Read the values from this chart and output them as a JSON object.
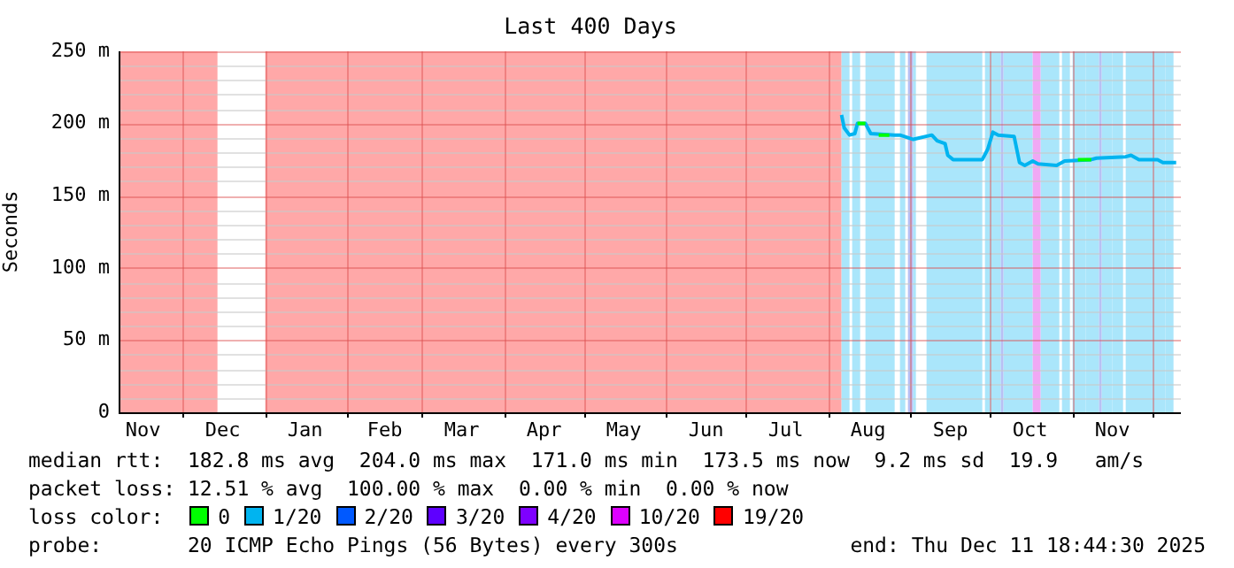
{
  "chart_data": {
    "type": "line",
    "title": "Last 400 Days",
    "ylabel": "Seconds",
    "xlim": [
      "2024-11-06T18:44",
      "2025-12-11T18:44"
    ],
    "xticks": [
      {
        "value": "2024-11-16",
        "label": "Nov"
      },
      {
        "value": "2024-12-01",
        "label": null
      },
      {
        "value": "2024-12-16",
        "label": "Dec"
      },
      {
        "value": "2025-01-01",
        "label": null
      },
      {
        "value": "2025-01-16",
        "label": "Jan"
      },
      {
        "value": "2025-02-01",
        "label": null
      },
      {
        "value": "2025-02-15",
        "label": "Feb"
      },
      {
        "value": "2025-03-01",
        "label": null
      },
      {
        "value": "2025-03-16",
        "label": "Mar"
      },
      {
        "value": "2025-04-01",
        "label": null
      },
      {
        "value": "2025-04-16",
        "label": "Apr"
      },
      {
        "value": "2025-05-01",
        "label": null
      },
      {
        "value": "2025-05-16",
        "label": "May"
      },
      {
        "value": "2025-06-01",
        "label": null
      },
      {
        "value": "2025-06-16",
        "label": "Jun"
      },
      {
        "value": "2025-07-01",
        "label": null
      },
      {
        "value": "2025-07-16",
        "label": "Jul"
      },
      {
        "value": "2025-08-01",
        "label": null
      },
      {
        "value": "2025-08-16",
        "label": "Aug"
      },
      {
        "value": "2025-09-01",
        "label": null
      },
      {
        "value": "2025-09-16",
        "label": "Sep"
      },
      {
        "value": "2025-10-01",
        "label": null
      },
      {
        "value": "2025-10-16",
        "label": "Oct"
      },
      {
        "value": "2025-11-01",
        "label": null
      },
      {
        "value": "2025-11-16",
        "label": "Nov"
      },
      {
        "value": "2025-12-01",
        "label": null
      }
    ],
    "ylim": [
      0,
      250
    ],
    "yticks": [
      0,
      {
        "value": 10,
        "label": null
      },
      {
        "value": 20,
        "label": null
      },
      {
        "value": 30,
        "label": null
      },
      {
        "value": 40,
        "label": null
      },
      {
        "value": 50,
        "label": "50 m"
      },
      {
        "value": 60,
        "label": null
      },
      {
        "value": 70,
        "label": null
      },
      {
        "value": 80,
        "label": null
      },
      {
        "value": 90,
        "label": null
      },
      {
        "value": 100,
        "label": "100 m"
      },
      {
        "value": 110,
        "label": null
      },
      {
        "value": 120,
        "label": null
      },
      {
        "value": 130,
        "label": null
      },
      {
        "value": 140,
        "label": null
      },
      {
        "value": 150,
        "label": "150 m"
      },
      {
        "value": 160,
        "label": null
      },
      {
        "value": 170,
        "label": null
      },
      {
        "value": 180,
        "label": null
      },
      {
        "value": 190,
        "label": null
      },
      {
        "value": 200,
        "label": "200 m"
      },
      {
        "value": 210,
        "label": null
      },
      {
        "value": 220,
        "label": null
      },
      {
        "value": 230,
        "label": null
      },
      {
        "value": 240,
        "label": null
      },
      {
        "value": 250,
        "label": "250 m"
      }
    ],
    "grid": true,
    "legend": "bottom",
    "legend_title": "loss color:",
    "marker": "none",
    "line_style": "solid",
    "bands": [
      {
        "axis": "x",
        "from": "2024-11-06T18:44",
        "to": "2024-12-14",
        "color": "#ffa8a8"
      },
      {
        "axis": "x",
        "from": "2025-01-01",
        "to": "2025-08-06",
        "color": "#ffa8a8"
      },
      {
        "axis": "x",
        "from": "2025-08-06",
        "to": "2025-08-09",
        "color": "#aae6fb"
      },
      {
        "axis": "x",
        "from": "2025-08-10",
        "to": "2025-08-13",
        "color": "#aae6fb"
      },
      {
        "axis": "x",
        "from": "2025-08-15",
        "to": "2025-08-26",
        "color": "#aae6fb"
      },
      {
        "axis": "x",
        "from": "2025-08-28",
        "to": "2025-08-30",
        "color": "#aae6fb"
      },
      {
        "axis": "x",
        "from": "2025-08-31",
        "to": "2025-09-02",
        "color": "#b8c0f4"
      },
      {
        "axis": "x",
        "from": "2025-09-02",
        "to": "2025-09-03",
        "color": "#aae6fb"
      },
      {
        "axis": "x",
        "from": "2025-09-07",
        "to": "2025-09-28",
        "color": "#aae6fb"
      },
      {
        "axis": "x",
        "from": "2025-09-29",
        "to": "2025-10-01",
        "color": "#aae6fb"
      },
      {
        "axis": "x",
        "from": "2025-10-01",
        "to": "2025-10-05",
        "color": "#aae6fb"
      },
      {
        "axis": "x",
        "from": "2025-10-05",
        "to": "2025-10-06",
        "color": "#b8c0f4"
      },
      {
        "axis": "x",
        "from": "2025-10-06",
        "to": "2025-10-17",
        "color": "#aae6fb"
      },
      {
        "axis": "x",
        "from": "2025-10-17",
        "to": "2025-10-20",
        "color": "#f0a8f4"
      },
      {
        "axis": "x",
        "from": "2025-10-20",
        "to": "2025-10-27",
        "color": "#aae6fb"
      },
      {
        "axis": "x",
        "from": "2025-10-28",
        "to": "2025-10-31",
        "color": "#aae6fb"
      },
      {
        "axis": "x",
        "from": "2025-11-01",
        "to": "2025-11-06",
        "color": "#aae6fb"
      },
      {
        "axis": "x",
        "from": "2025-11-06",
        "to": "2025-11-11",
        "color": "#aae6fb"
      },
      {
        "axis": "x",
        "from": "2025-11-11",
        "to": "2025-11-12",
        "color": "#b8c0f4"
      },
      {
        "axis": "x",
        "from": "2025-11-12",
        "to": "2025-11-16",
        "color": "#aae6fb"
      },
      {
        "axis": "x",
        "from": "2025-11-16",
        "to": "2025-11-20",
        "color": "#aae6fb"
      },
      {
        "axis": "x",
        "from": "2025-11-21",
        "to": "2025-12-06",
        "color": "#aae6fb"
      },
      {
        "axis": "x",
        "from": "2025-12-06",
        "to": "2025-12-09",
        "color": "#aae6fb"
      }
    ],
    "series": [
      {
        "name": "0",
        "color": "#00ff00",
        "x": [
          "2025-08-12",
          "2025-08-15",
          "2025-08-16",
          "2025-08-20",
          "2025-08-24",
          "2025-08-25",
          "2025-11-03",
          "2025-11-08"
        ],
        "values": [
          200,
          200,
          null,
          192,
          192,
          null,
          175,
          175
        ]
      },
      {
        "name": "1/20",
        "color": "#00b4f0",
        "x": [
          "2025-08-06",
          "2025-08-07",
          "2025-08-09",
          "2025-08-11",
          "2025-08-12",
          "2025-08-15",
          "2025-08-17",
          "2025-08-26",
          "2025-08-28",
          "2025-09-02",
          "2025-09-09",
          "2025-09-11",
          "2025-09-14",
          "2025-09-15",
          "2025-09-17",
          "2025-09-22",
          "2025-09-28",
          "2025-09-30",
          "2025-10-02",
          "2025-10-04",
          "2025-10-10",
          "2025-10-12",
          "2025-10-14",
          "2025-10-17",
          "2025-10-19",
          "2025-10-26",
          "2025-10-29",
          "2025-11-08",
          "2025-11-10",
          "2025-11-21",
          "2025-11-23",
          "2025-11-26",
          "2025-12-03",
          "2025-12-05",
          "2025-12-10"
        ],
        "values": [
          206,
          197,
          192,
          193,
          200,
          200,
          193,
          192,
          192,
          189,
          192,
          188,
          186,
          178,
          175,
          175,
          175,
          182,
          194,
          192,
          191,
          173,
          171,
          174,
          172,
          171,
          174,
          175,
          176,
          177,
          178,
          175,
          175,
          173,
          173
        ]
      },
      {
        "name": "2/20",
        "color": "#0059ff"
      },
      {
        "name": "3/20",
        "color": "#5e00ff"
      },
      {
        "name": "4/20",
        "color": "#7e00ff"
      },
      {
        "name": "10/20",
        "color": "#dd00ff"
      },
      {
        "name": "19/20",
        "color": "#ff0000"
      }
    ],
    "annotations": [
      "median rtt:  182.8 ms avg  204.0 ms max  171.0 ms min  173.5 ms now  9.2 ms sd  19.9   am/s",
      "packet loss: 12.51 % avg  100.00 % max  0.00 % min  0.00 % now",
      "probe:       20 ICMP Echo Pings (56 Bytes) every 300s",
      "end: Thu Dec 11 18:44:30 2025"
    ]
  }
}
